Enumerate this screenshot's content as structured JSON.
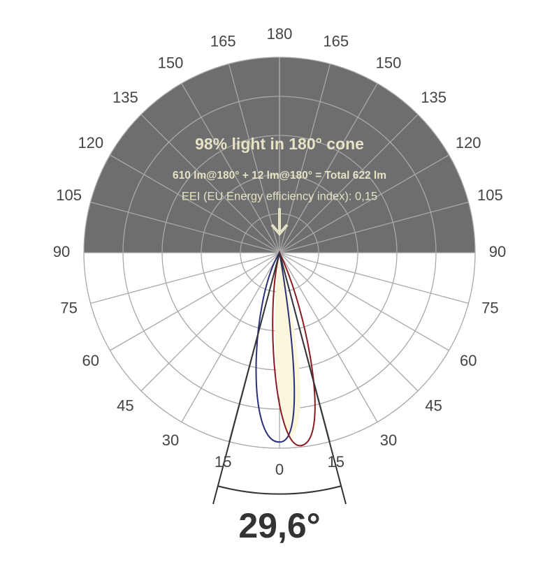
{
  "header": {
    "title": "98% light in 180° cone",
    "flux_line": "610 lm@180° + 12 lm@180° = Total 622 lm",
    "eei_line": "EEI (EU Energy efficiency index): 0,15"
  },
  "angle_labels": {
    "left": [
      "0",
      "15",
      "30",
      "45",
      "60",
      "75",
      "90",
      "105",
      "120",
      "135",
      "150",
      "165",
      "180"
    ],
    "right": [
      "15",
      "30",
      "45",
      "60",
      "75",
      "90",
      "105",
      "120",
      "135",
      "150",
      "165"
    ]
  },
  "beam_angle": "29,6°"
}
